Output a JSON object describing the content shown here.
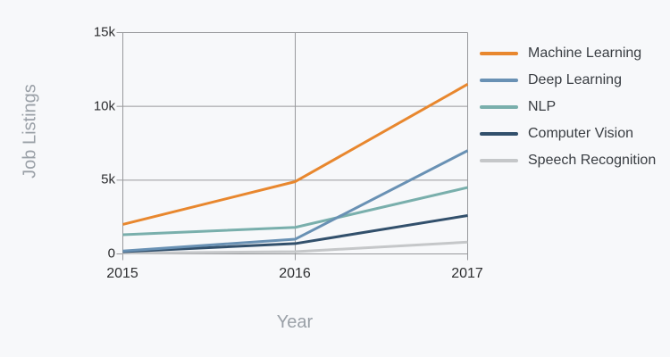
{
  "colors": {
    "background": "#f7f8fa",
    "grid": "#98999c",
    "tick_text": "#2d2e30",
    "axis_title_text": "#9aa0a7",
    "legend_text": "#393d42"
  },
  "chart_data": {
    "type": "line",
    "title": "",
    "xlabel": "Year",
    "ylabel": "Job Listings",
    "categories": [
      "2015",
      "2016",
      "2017"
    ],
    "ylim": [
      0,
      15000
    ],
    "ytick_values": [
      0,
      5000,
      10000,
      15000
    ],
    "ytick_labels": [
      "0",
      "5k",
      "10k",
      "15k"
    ],
    "grid": true,
    "legend_position": "right",
    "series": [
      {
        "name": "Machine Learning",
        "color": "#e8872e",
        "values": [
          2000,
          4900,
          11500
        ]
      },
      {
        "name": "Deep Learning",
        "color": "#6991b4",
        "values": [
          200,
          1000,
          7000
        ]
      },
      {
        "name": "NLP",
        "color": "#79afac",
        "values": [
          1300,
          1800,
          4500
        ]
      },
      {
        "name": "Computer Vision",
        "color": "#32506c",
        "values": [
          150,
          700,
          2600
        ]
      },
      {
        "name": "Speech Recognition",
        "color": "#c5c7c9",
        "values": [
          50,
          150,
          800
        ]
      }
    ]
  }
}
